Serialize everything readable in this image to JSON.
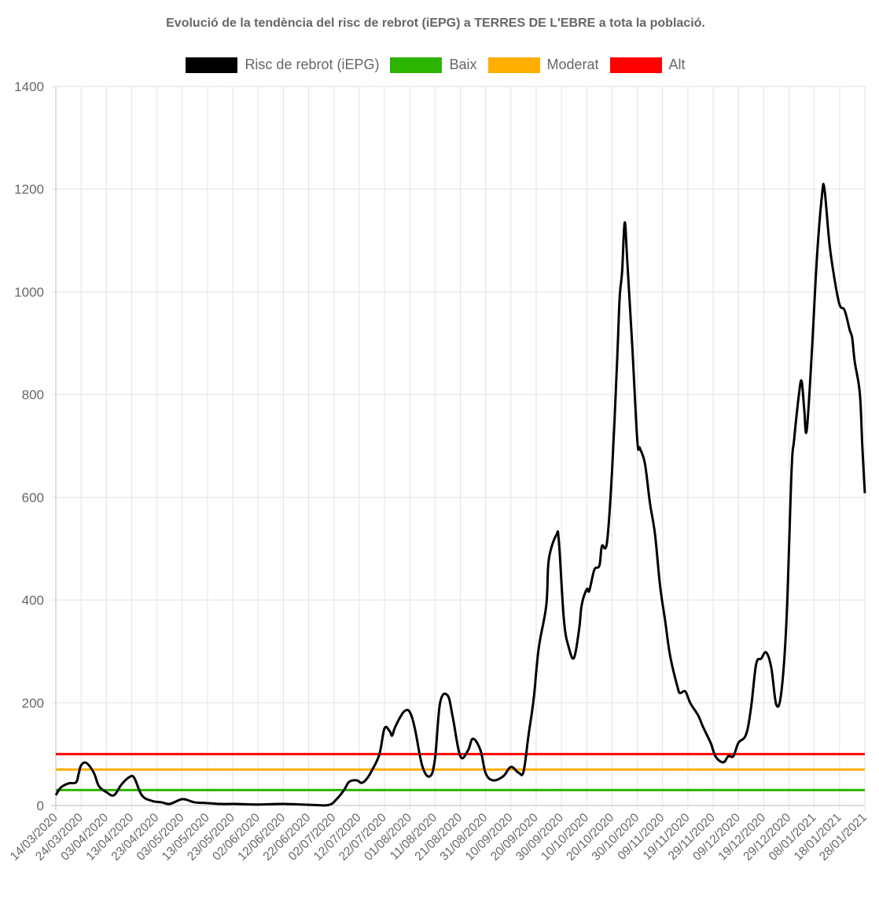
{
  "chart_data": {
    "type": "line",
    "title": "Evolució de la tendència del risc de rebrot (iEPG) a TERRES DE L'EBRE a tota la població.",
    "xlabel": "",
    "ylabel": "",
    "ylim": [
      0,
      1400
    ],
    "yticks": [
      "0",
      "200",
      "400",
      "600",
      "800",
      "1000",
      "1200",
      "1400"
    ],
    "xlim": [
      "14/03/2020",
      "28/01/2021"
    ],
    "xticks": [
      "14/03/2020",
      "24/03/2020",
      "03/04/2020",
      "13/04/2020",
      "23/04/2020",
      "03/05/2020",
      "13/05/2020",
      "23/05/2020",
      "02/06/2020",
      "12/06/2020",
      "22/06/2020",
      "02/07/2020",
      "12/07/2020",
      "22/07/2020",
      "01/08/2020",
      "11/08/2020",
      "21/08/2020",
      "31/08/2020",
      "10/09/2020",
      "20/09/2020",
      "30/09/2020",
      "10/10/2020",
      "20/10/2020",
      "30/10/2020",
      "09/11/2020",
      "19/11/2020",
      "29/11/2020",
      "09/12/2020",
      "19/12/2020",
      "29/12/2020",
      "08/01/2021",
      "18/01/2021",
      "28/01/2021"
    ],
    "grid": true,
    "legend_position": "top",
    "series": [
      {
        "name": "Risc de rebrot (iEPG)",
        "color": "#000000",
        "points": [
          [
            "14/03/2020",
            20
          ],
          [
            "16/03/2020",
            35
          ],
          [
            "19/03/2020",
            43
          ],
          [
            "22/03/2020",
            45
          ],
          [
            "23/03/2020",
            61
          ],
          [
            "24/03/2020",
            78
          ],
          [
            "26/03/2020",
            83
          ],
          [
            "29/03/2020",
            64
          ],
          [
            "31/03/2020",
            38
          ],
          [
            "03/04/2020",
            26
          ],
          [
            "06/04/2020",
            20
          ],
          [
            "09/04/2020",
            41
          ],
          [
            "12/04/2020",
            55
          ],
          [
            "14/04/2020",
            54
          ],
          [
            "17/04/2020",
            20
          ],
          [
            "21/04/2020",
            9
          ],
          [
            "25/04/2020",
            6
          ],
          [
            "28/04/2020",
            3
          ],
          [
            "02/05/2020",
            11
          ],
          [
            "04/05/2020",
            12
          ],
          [
            "08/05/2020",
            6
          ],
          [
            "12/05/2020",
            5
          ],
          [
            "18/05/2020",
            3
          ],
          [
            "24/05/2020",
            3
          ],
          [
            "02/06/2020",
            2
          ],
          [
            "12/06/2020",
            3
          ],
          [
            "24/06/2020",
            1
          ],
          [
            "30/06/2020",
            1
          ],
          [
            "03/07/2020",
            12
          ],
          [
            "06/07/2020",
            30
          ],
          [
            "08/07/2020",
            46
          ],
          [
            "11/07/2020",
            49
          ],
          [
            "13/07/2020",
            44
          ],
          [
            "15/07/2020",
            52
          ],
          [
            "17/07/2020",
            68
          ],
          [
            "20/07/2020",
            100
          ],
          [
            "22/07/2020",
            150
          ],
          [
            "24/07/2020",
            145
          ],
          [
            "25/07/2020",
            136
          ],
          [
            "26/07/2020",
            150
          ],
          [
            "28/07/2020",
            170
          ],
          [
            "30/07/2020",
            184
          ],
          [
            "01/08/2020",
            182
          ],
          [
            "03/08/2020",
            150
          ],
          [
            "06/08/2020",
            76
          ],
          [
            "09/08/2020",
            57
          ],
          [
            "11/08/2020",
            92
          ],
          [
            "13/08/2020",
            200
          ],
          [
            "16/08/2020",
            214
          ],
          [
            "18/08/2020",
            172
          ],
          [
            "21/08/2020",
            96
          ],
          [
            "24/08/2020",
            107
          ],
          [
            "26/08/2020",
            130
          ],
          [
            "29/08/2020",
            107
          ],
          [
            "31/08/2020",
            63
          ],
          [
            "03/09/2020",
            49
          ],
          [
            "07/09/2020",
            57
          ],
          [
            "10/09/2020",
            75
          ],
          [
            "13/09/2020",
            64
          ],
          [
            "15/09/2020",
            66
          ],
          [
            "17/09/2020",
            138
          ],
          [
            "19/09/2020",
            207
          ],
          [
            "21/09/2020",
            306
          ],
          [
            "24/09/2020",
            390
          ],
          [
            "25/09/2020",
            479
          ],
          [
            "28/09/2020",
            527
          ],
          [
            "29/09/2020",
            513
          ],
          [
            "01/10/2020",
            360
          ],
          [
            "03/10/2020",
            306
          ],
          [
            "05/10/2020",
            288
          ],
          [
            "07/10/2020",
            344
          ],
          [
            "08/10/2020",
            390
          ],
          [
            "10/10/2020",
            421
          ],
          [
            "11/10/2020",
            418
          ],
          [
            "13/10/2020",
            459
          ],
          [
            "15/10/2020",
            467
          ],
          [
            "16/10/2020",
            505
          ],
          [
            "18/10/2020",
            512
          ],
          [
            "20/10/2020",
            650
          ],
          [
            "22/10/2020",
            864
          ],
          [
            "23/10/2020",
            987
          ],
          [
            "24/10/2020",
            1040
          ],
          [
            "25/10/2020",
            1135
          ],
          [
            "26/10/2020",
            1063
          ],
          [
            "28/10/2020",
            895
          ],
          [
            "30/10/2020",
            711
          ],
          [
            "31/10/2020",
            696
          ],
          [
            "02/11/2020",
            666
          ],
          [
            "04/11/2020",
            589
          ],
          [
            "06/11/2020",
            528
          ],
          [
            "08/11/2020",
            428
          ],
          [
            "10/11/2020",
            360
          ],
          [
            "12/11/2020",
            291
          ],
          [
            "15/11/2020",
            229
          ],
          [
            "16/11/2020",
            219
          ],
          [
            "18/11/2020",
            222
          ],
          [
            "20/11/2020",
            199
          ],
          [
            "23/11/2020",
            176
          ],
          [
            "25/11/2020",
            153
          ],
          [
            "28/11/2020",
            122
          ],
          [
            "30/11/2020",
            95
          ],
          [
            "03/12/2020",
            84
          ],
          [
            "05/12/2020",
            96
          ],
          [
            "07/12/2020",
            96
          ],
          [
            "09/12/2020",
            122
          ],
          [
            "12/12/2020",
            138
          ],
          [
            "14/12/2020",
            191
          ],
          [
            "16/12/2020",
            275
          ],
          [
            "18/12/2020",
            286
          ],
          [
            "20/12/2020",
            298
          ],
          [
            "22/12/2020",
            268
          ],
          [
            "24/12/2020",
            196
          ],
          [
            "26/12/2020",
            222
          ],
          [
            "28/12/2020",
            360
          ],
          [
            "30/12/2020",
            650
          ],
          [
            "31/12/2020",
            711
          ],
          [
            "02/01/2021",
            803
          ],
          [
            "03/01/2021",
            826
          ],
          [
            "04/01/2021",
            773
          ],
          [
            "05/01/2021",
            730
          ],
          [
            "07/01/2021",
            880
          ],
          [
            "09/01/2021",
            1063
          ],
          [
            "11/01/2021",
            1186
          ],
          [
            "12/01/2021",
            1201
          ],
          [
            "14/01/2021",
            1094
          ],
          [
            "16/01/2021",
            1025
          ],
          [
            "18/01/2021",
            975
          ],
          [
            "20/01/2021",
            964
          ],
          [
            "22/01/2021",
            926
          ],
          [
            "23/01/2021",
            910
          ],
          [
            "24/01/2021",
            864
          ],
          [
            "26/01/2021",
            803
          ],
          [
            "27/01/2021",
            700
          ],
          [
            "28/01/2021",
            608
          ]
        ]
      },
      {
        "name": "Baix",
        "color": "#2cb400",
        "constant": 30
      },
      {
        "name": "Moderat",
        "color": "#ffae00",
        "constant": 70
      },
      {
        "name": "Alt",
        "color": "#ff0000",
        "constant": 100
      }
    ]
  }
}
